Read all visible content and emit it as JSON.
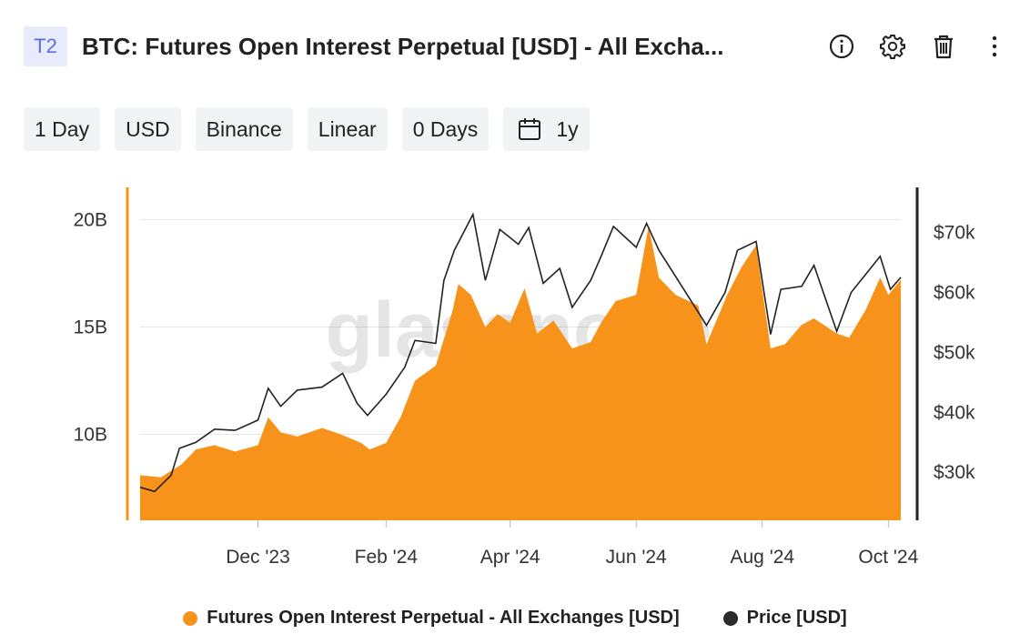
{
  "header": {
    "tag": "T2",
    "title": "BTC: Futures Open Interest Perpetual [USD] - All Excha..."
  },
  "icons": {
    "info": "info-icon",
    "settings": "gear-icon",
    "delete": "trash-icon",
    "more": "more-vertical-icon",
    "calendar": "calendar-icon"
  },
  "toolbar": {
    "resolution": "1 Day",
    "currency": "USD",
    "exchange": "Binance",
    "scale": "Linear",
    "moving_average": "0 Days",
    "range": "1y"
  },
  "watermark": "glassnode",
  "legend": [
    {
      "label": "Futures Open Interest Perpetual - All Exchanges [USD]",
      "color": "#f7931a"
    },
    {
      "label": "Price [USD]",
      "color": "#222222"
    }
  ],
  "chart_data": {
    "type": "area",
    "x_tick_labels": [
      "Dec '23",
      "Feb '24",
      "Apr '24",
      "Jun '24",
      "Aug '24",
      "Oct '24"
    ],
    "x_tick_dates": [
      "2023-12-01",
      "2024-02-01",
      "2024-04-01",
      "2024-06-01",
      "2024-08-01",
      "2024-10-01"
    ],
    "x_range": [
      "2023-10-05",
      "2024-10-07"
    ],
    "y_left": {
      "ticks": [
        10,
        15,
        20
      ],
      "tick_labels": [
        "10B",
        "15B",
        "20B"
      ],
      "range": [
        6.0,
        21.5
      ],
      "unit": "B USD"
    },
    "y_right": {
      "ticks": [
        30,
        40,
        50,
        60,
        70
      ],
      "tick_labels": [
        "$30k",
        "$40k",
        "$50k",
        "$60k",
        "$70k"
      ],
      "range": [
        22,
        77.5
      ],
      "unit": "k USD"
    },
    "grid": true,
    "legend_position": "bottom",
    "series": [
      {
        "name": "Futures Open Interest Perpetual - All Exchanges [USD]",
        "type": "area",
        "axis": "left",
        "color": "#f7931a",
        "points": [
          [
            "2023-10-05",
            8.1
          ],
          [
            "2023-10-15",
            8.0
          ],
          [
            "2023-10-25",
            8.6
          ],
          [
            "2023-11-01",
            9.3
          ],
          [
            "2023-11-10",
            9.5
          ],
          [
            "2023-11-20",
            9.2
          ],
          [
            "2023-12-01",
            9.5
          ],
          [
            "2023-12-06",
            10.8
          ],
          [
            "2023-12-12",
            10.1
          ],
          [
            "2023-12-20",
            9.9
          ],
          [
            "2024-01-01",
            10.3
          ],
          [
            "2024-01-10",
            10.0
          ],
          [
            "2024-01-20",
            9.6
          ],
          [
            "2024-01-24",
            9.3
          ],
          [
            "2024-02-01",
            9.6
          ],
          [
            "2024-02-08",
            10.8
          ],
          [
            "2024-02-15",
            12.5
          ],
          [
            "2024-02-25",
            13.2
          ],
          [
            "2024-03-04",
            15.7
          ],
          [
            "2024-03-07",
            17.0
          ],
          [
            "2024-03-13",
            16.5
          ],
          [
            "2024-03-20",
            15.0
          ],
          [
            "2024-03-26",
            15.6
          ],
          [
            "2024-04-01",
            15.2
          ],
          [
            "2024-04-08",
            16.8
          ],
          [
            "2024-04-14",
            14.7
          ],
          [
            "2024-04-22",
            15.3
          ],
          [
            "2024-05-01",
            14.0
          ],
          [
            "2024-05-10",
            14.3
          ],
          [
            "2024-05-15",
            15.2
          ],
          [
            "2024-05-22",
            16.2
          ],
          [
            "2024-06-01",
            16.5
          ],
          [
            "2024-06-07",
            19.7
          ],
          [
            "2024-06-12",
            17.3
          ],
          [
            "2024-06-20",
            16.5
          ],
          [
            "2024-07-01",
            16.0
          ],
          [
            "2024-07-05",
            14.2
          ],
          [
            "2024-07-15",
            16.5
          ],
          [
            "2024-07-22",
            17.8
          ],
          [
            "2024-07-29",
            18.8
          ],
          [
            "2024-08-05",
            14.0
          ],
          [
            "2024-08-12",
            14.2
          ],
          [
            "2024-08-20",
            15.1
          ],
          [
            "2024-08-26",
            15.4
          ],
          [
            "2024-09-06",
            14.7
          ],
          [
            "2024-09-12",
            14.5
          ],
          [
            "2024-09-20",
            15.8
          ],
          [
            "2024-09-27",
            17.3
          ],
          [
            "2024-10-01",
            16.5
          ],
          [
            "2024-10-07",
            17.2
          ]
        ]
      },
      {
        "name": "Price [USD]",
        "type": "line",
        "axis": "right",
        "color": "#222222",
        "points": [
          [
            "2023-10-05",
            27.5
          ],
          [
            "2023-10-12",
            26.8
          ],
          [
            "2023-10-20",
            29.5
          ],
          [
            "2023-10-24",
            34.0
          ],
          [
            "2023-11-01",
            35.0
          ],
          [
            "2023-11-10",
            37.2
          ],
          [
            "2023-11-20",
            37.0
          ],
          [
            "2023-12-01",
            38.7
          ],
          [
            "2023-12-06",
            44.0
          ],
          [
            "2023-12-12",
            41.0
          ],
          [
            "2023-12-20",
            43.7
          ],
          [
            "2024-01-01",
            44.2
          ],
          [
            "2024-01-11",
            46.5
          ],
          [
            "2024-01-18",
            41.5
          ],
          [
            "2024-01-23",
            39.5
          ],
          [
            "2024-02-01",
            43.0
          ],
          [
            "2024-02-10",
            47.5
          ],
          [
            "2024-02-15",
            52.0
          ],
          [
            "2024-02-25",
            51.5
          ],
          [
            "2024-02-29",
            62.0
          ],
          [
            "2024-03-05",
            67.0
          ],
          [
            "2024-03-14",
            73.0
          ],
          [
            "2024-03-20",
            62.0
          ],
          [
            "2024-03-27",
            70.5
          ],
          [
            "2024-04-05",
            68.0
          ],
          [
            "2024-04-10",
            70.8
          ],
          [
            "2024-04-17",
            61.5
          ],
          [
            "2024-04-25",
            64.0
          ],
          [
            "2024-05-01",
            57.5
          ],
          [
            "2024-05-10",
            62.0
          ],
          [
            "2024-05-15",
            66.0
          ],
          [
            "2024-05-21",
            71.0
          ],
          [
            "2024-06-01",
            67.5
          ],
          [
            "2024-06-06",
            71.5
          ],
          [
            "2024-06-12",
            67.0
          ],
          [
            "2024-06-24",
            60.5
          ],
          [
            "2024-07-05",
            54.5
          ],
          [
            "2024-07-14",
            60.0
          ],
          [
            "2024-07-20",
            67.0
          ],
          [
            "2024-07-29",
            68.5
          ],
          [
            "2024-08-05",
            53.0
          ],
          [
            "2024-08-10",
            60.5
          ],
          [
            "2024-08-20",
            61.0
          ],
          [
            "2024-08-26",
            64.5
          ],
          [
            "2024-09-06",
            53.5
          ],
          [
            "2024-09-13",
            60.0
          ],
          [
            "2024-09-20",
            63.0
          ],
          [
            "2024-09-27",
            66.0
          ],
          [
            "2024-10-02",
            60.5
          ],
          [
            "2024-10-07",
            62.5
          ]
        ]
      }
    ]
  }
}
